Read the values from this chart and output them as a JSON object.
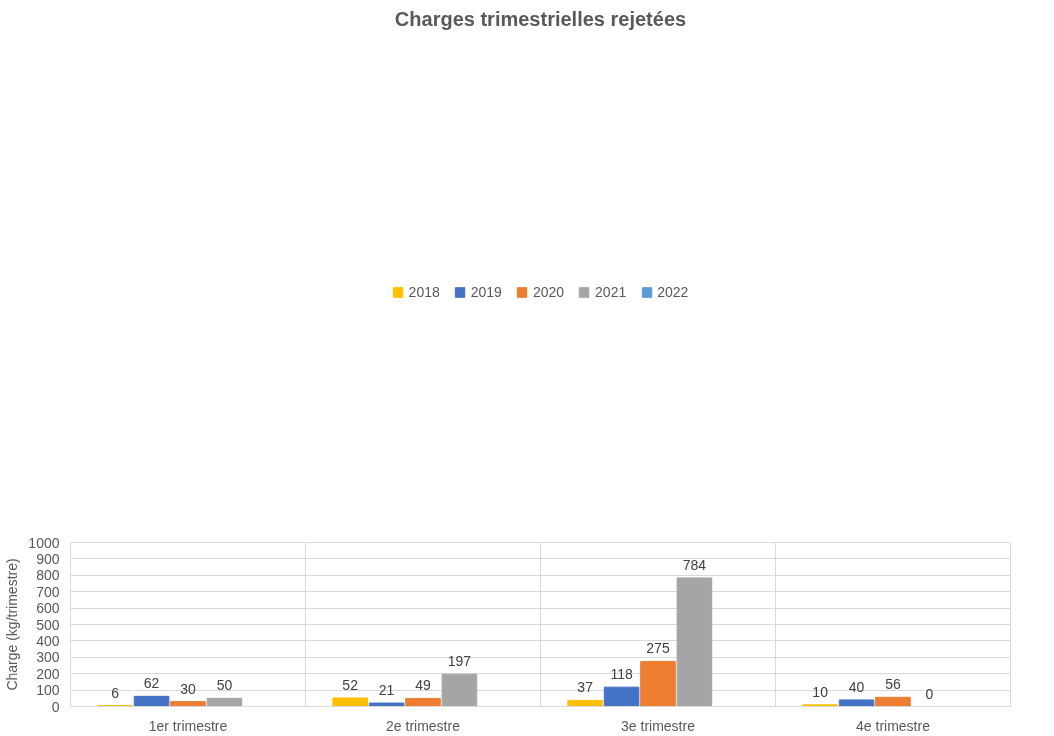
{
  "chart_data": {
    "type": "bar",
    "title": "Charges trimestrielles rejetées",
    "ylabel": "Charge (kg/trimestre)",
    "categories": [
      "1er trimestre",
      "2e trimestre",
      "3e trimestre",
      "4e trimestre"
    ],
    "series": [
      {
        "name": "2018",
        "color": "#ffc000",
        "values": [
          6,
          52,
          37,
          10
        ]
      },
      {
        "name": "2019",
        "color": "#4472c4",
        "values": [
          62,
          21,
          118,
          40
        ]
      },
      {
        "name": "2020",
        "color": "#ed7d31",
        "values": [
          30,
          49,
          275,
          56
        ]
      },
      {
        "name": "2021",
        "color": "#a5a5a5",
        "values": [
          50,
          197,
          784,
          0
        ]
      },
      {
        "name": "2022",
        "color": "#5b9bd5",
        "values": [
          null,
          null,
          null,
          null
        ]
      }
    ],
    "ylim": [
      0,
      1000
    ],
    "yticks": [
      0,
      100,
      200,
      300,
      400,
      500,
      600,
      700,
      800,
      900,
      1000
    ],
    "grid": true,
    "legend": "top",
    "data_labels": true
  }
}
